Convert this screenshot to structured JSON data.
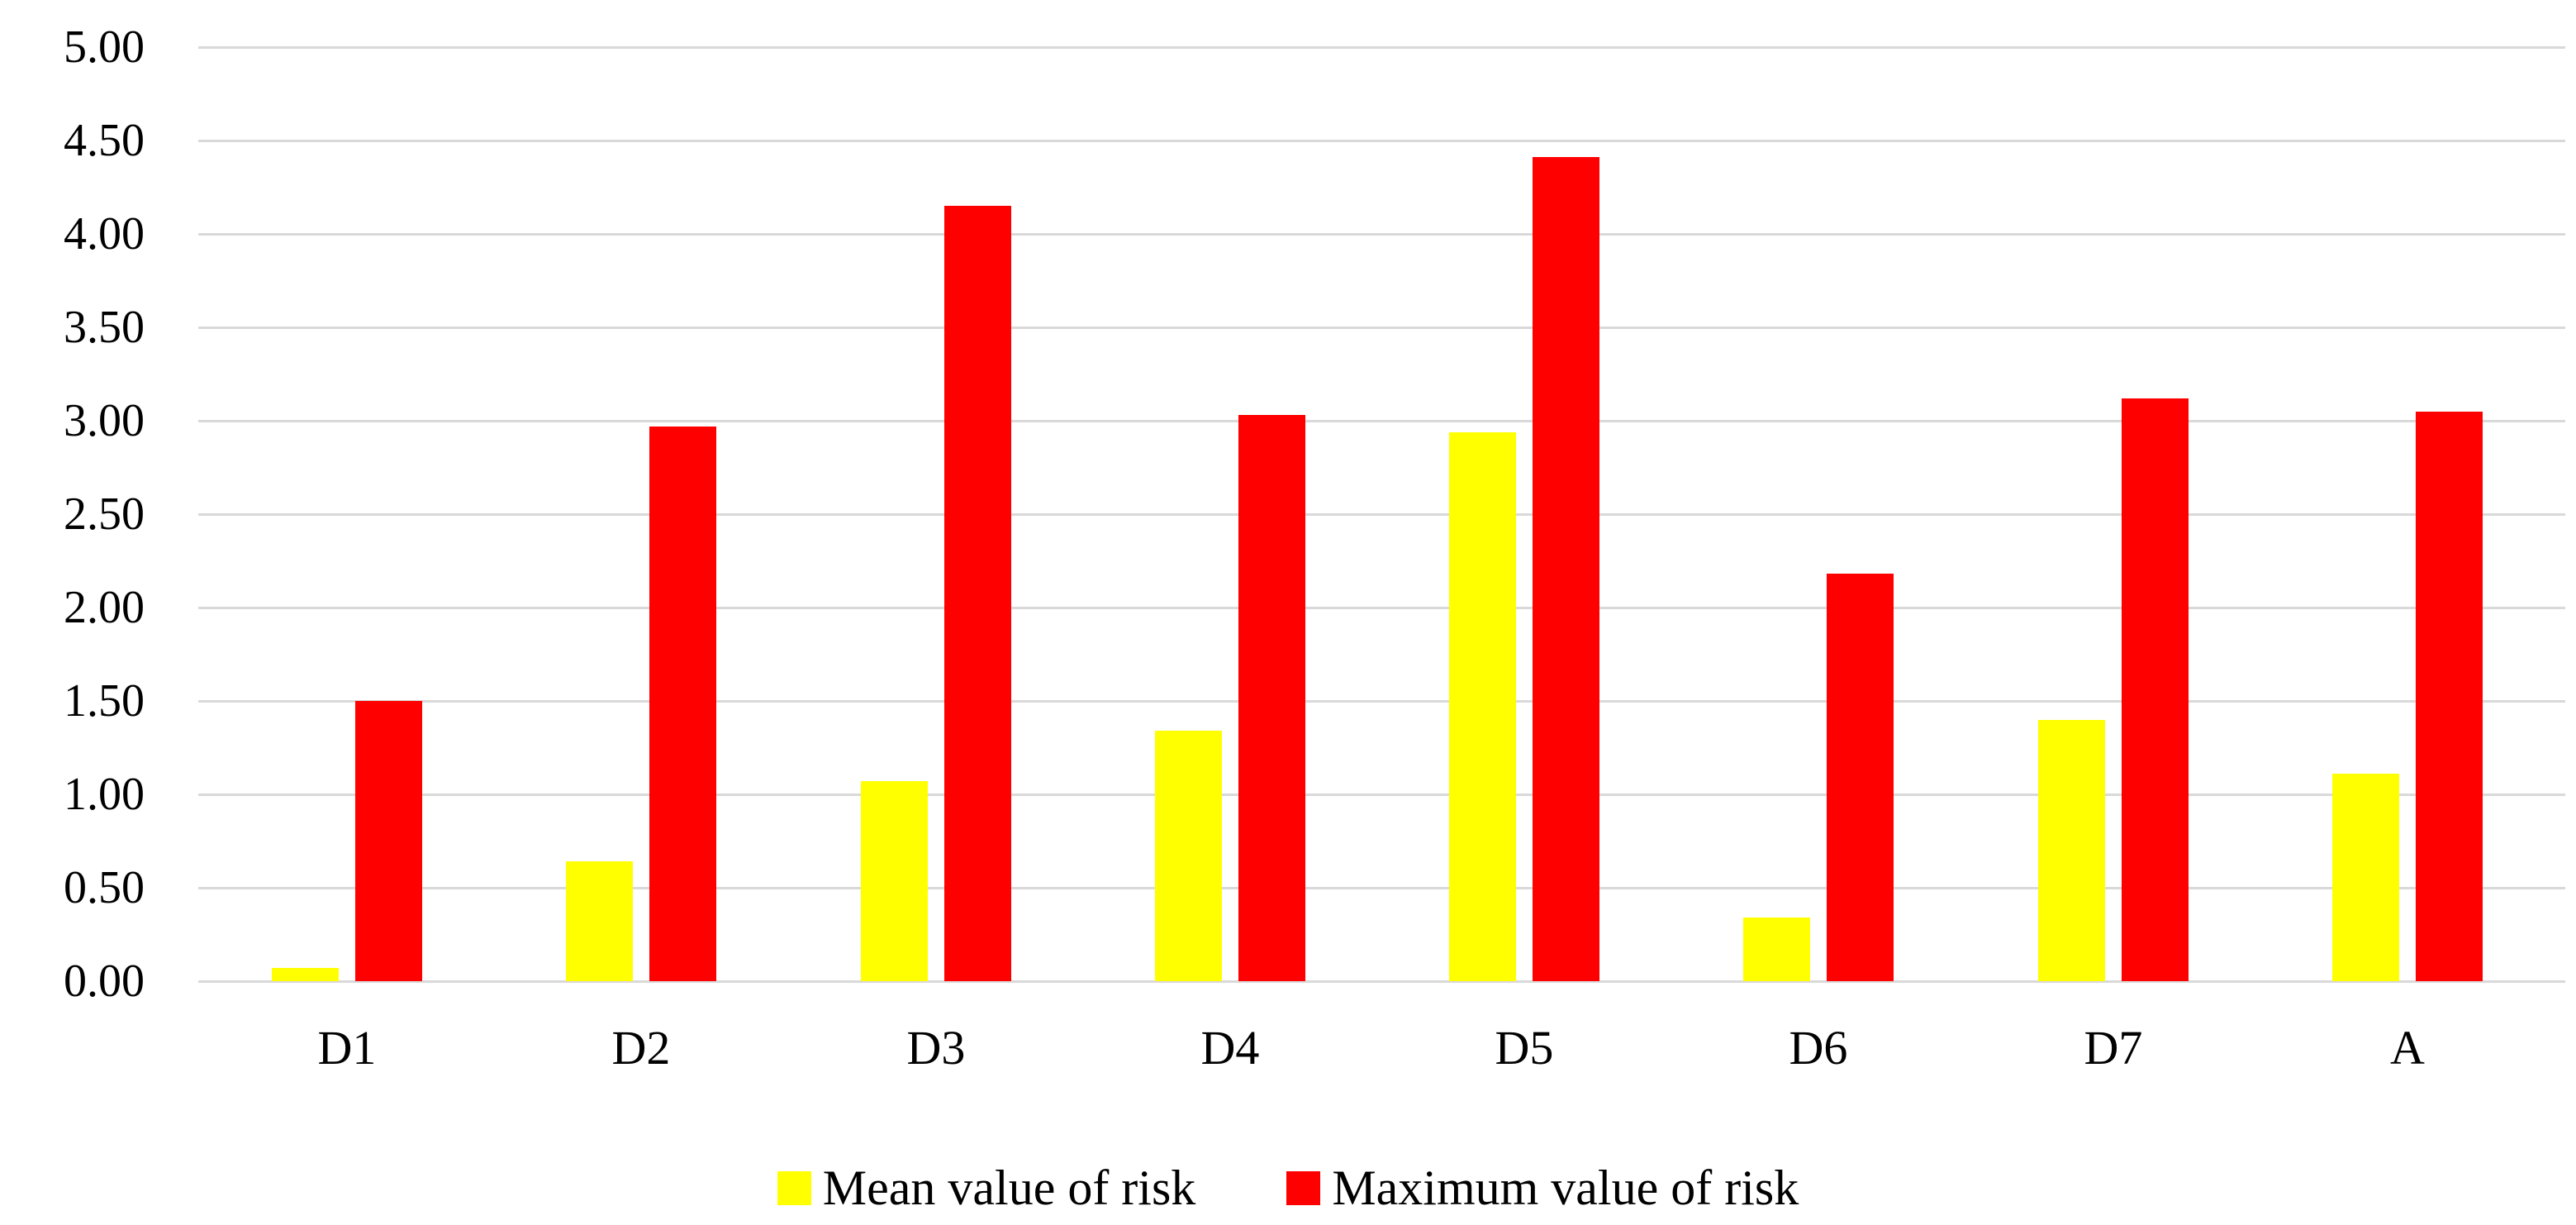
{
  "chart_data": {
    "type": "bar",
    "title": "",
    "categories": [
      "D1",
      "D2",
      "D3",
      "D4",
      "D5",
      "D6",
      "D7",
      "A"
    ],
    "series": [
      {
        "name": "Mean value of risk",
        "color": "#FFFF00",
        "values": [
          0.07,
          0.64,
          1.07,
          1.34,
          2.94,
          0.34,
          1.4,
          1.11
        ]
      },
      {
        "name": "Maximum value of risk",
        "color": "#FF0000",
        "values": [
          1.5,
          2.97,
          4.15,
          3.03,
          4.41,
          2.18,
          3.12,
          3.05
        ]
      }
    ],
    "y_axis": {
      "min": 0,
      "max": 5,
      "step": 0.5,
      "tick_labels": [
        "0.00",
        "0.50",
        "1.00",
        "1.50",
        "2.00",
        "2.50",
        "3.00",
        "3.50",
        "4.00",
        "4.50",
        "5.00"
      ]
    },
    "x_axis_label": "",
    "y_axis_label": "",
    "grid": true,
    "gridline_color": "#D9D9D9",
    "background_color": "#FFFFFF",
    "text_color": "#000000",
    "legend_position": "bottom"
  }
}
